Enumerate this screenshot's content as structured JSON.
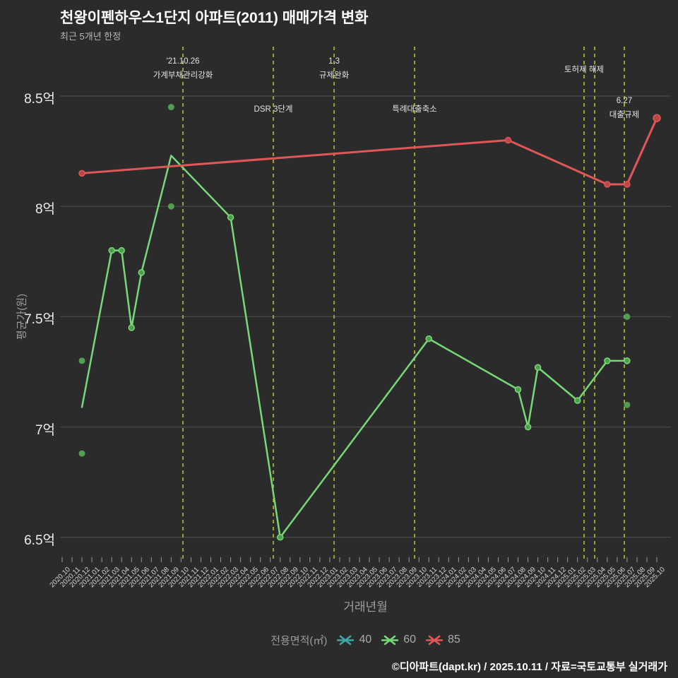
{
  "footer": {
    "credit": "©디아파트(dapt.kr) / 2025.10.11 / 자료=국토교통부 실거래가"
  },
  "colors": {
    "background": "#2b2b2b",
    "grid": "#4f4f4f",
    "x_tick": "#999999",
    "event_line": "#9da32e",
    "teal": "#3fa6a6",
    "green": "#77d877",
    "green_dot": "#4e9e4e",
    "green_scatter": "#55a355",
    "red": "#e15757",
    "red_dot": "#b94747"
  },
  "chart_data": {
    "type": "line",
    "title": "천왕이펜하우스1단지 아파트(2011) 매매가격 변화",
    "subtitle": "최근 5개년 한정",
    "xlabel": "거래년월",
    "ylabel": "평균가(원)",
    "ylim": [
      6.4,
      8.72
    ],
    "grid": true,
    "yticks": [
      {
        "value": 8.5,
        "label": "8.5억"
      },
      {
        "value": 8.0,
        "label": "8억"
      },
      {
        "value": 7.5,
        "label": "7.5억"
      },
      {
        "value": 7.0,
        "label": "7억"
      },
      {
        "value": 6.5,
        "label": "6.5억"
      }
    ],
    "x_categories": [
      "2020.10",
      "2020.11",
      "2020.12",
      "2021.01",
      "2021.02",
      "2021.03",
      "2021.04",
      "2021.05",
      "2021.06",
      "2021.07",
      "2021.08",
      "2021.09",
      "2021.10",
      "2021.11",
      "2021.12",
      "2022.01",
      "2022.02",
      "2022.03",
      "2022.04",
      "2022.05",
      "2022.06",
      "2022.07",
      "2022.08",
      "2022.09",
      "2022.10",
      "2022.11",
      "2022.12",
      "2023.01",
      "2023.02",
      "2023.03",
      "2023.04",
      "2023.05",
      "2023.06",
      "2023.07",
      "2023.08",
      "2023.09",
      "2023.10",
      "2023.11",
      "2023.12",
      "2024.01",
      "2024.02",
      "2024.03",
      "2024.04",
      "2024.05",
      "2024.06",
      "2024.07",
      "2024.08",
      "2024.09",
      "2024.10",
      "2024.11",
      "2024.12",
      "2025.01",
      "2025.02",
      "2025.03",
      "2025.04",
      "2025.05",
      "2025.06",
      "2025.07",
      "2025.08",
      "2025.09",
      "2025.10"
    ],
    "legend": {
      "title": "전용면적(㎡)",
      "items": [
        {
          "label": "40",
          "color": "#3fa6a6"
        },
        {
          "label": "60",
          "color": "#77d877"
        },
        {
          "label": "85",
          "color": "#e15757"
        }
      ]
    },
    "series": [
      {
        "name": "40",
        "color": "#3fa6a6",
        "width": 2.5,
        "points": [],
        "no_marker": []
      },
      {
        "name": "60",
        "color": "#77d877",
        "dot_fill": "#4e9e4e",
        "width": 2.5,
        "points": [
          [
            "2020.12",
            7.09
          ],
          [
            "2021.03",
            7.8
          ],
          [
            "2021.04",
            7.8
          ],
          [
            "2021.05",
            7.45
          ],
          [
            "2021.06",
            7.7
          ],
          [
            "2021.09",
            8.23
          ],
          [
            "2022.03",
            7.95
          ],
          [
            "2022.08",
            6.5
          ],
          [
            "2023.11",
            7.4
          ],
          [
            "2024.08",
            7.17
          ],
          [
            "2024.09",
            7.0
          ],
          [
            "2024.10",
            7.27
          ],
          [
            "2025.02",
            7.12
          ],
          [
            "2025.05",
            7.3
          ],
          [
            "2025.07",
            7.3
          ]
        ],
        "no_marker": [
          "2020.12",
          "2021.09"
        ]
      },
      {
        "name": "85",
        "color": "#e15757",
        "dot_fill": "#b94747",
        "width": 3,
        "points": [
          [
            "2020.12",
            8.15
          ],
          [
            "2024.07",
            8.3
          ],
          [
            "2025.05",
            8.1
          ],
          [
            "2025.07",
            8.1
          ],
          [
            "2025.10",
            8.4,
            5
          ]
        ],
        "no_marker": []
      }
    ],
    "scatter_extra": [
      {
        "series": "60",
        "x": "2020.12",
        "y": 7.3
      },
      {
        "series": "60",
        "x": "2020.12",
        "y": 6.88
      },
      {
        "series": "60",
        "x": "2021.09",
        "y": 8.45
      },
      {
        "series": "60",
        "x": "2021.09",
        "y": 8.0
      },
      {
        "series": "60",
        "x": "2025.07",
        "y": 7.5
      },
      {
        "series": "60",
        "x": "2025.07",
        "y": 7.1
      }
    ],
    "event_lines": [
      {
        "tick": 12.19,
        "label_lines": [
          "'21.10.26",
          "가계부채관리강화"
        ],
        "label_pos": "above"
      },
      {
        "tick": 21.31,
        "label_lines": [
          "DSR 3단계"
        ],
        "label_pos": "inside"
      },
      {
        "tick": 27.44,
        "label_lines": [
          "1.3",
          "규제완화"
        ],
        "label_pos": "above"
      },
      {
        "tick": 35.56,
        "label_lines": [
          "특례대출축소"
        ],
        "label_pos": "inside"
      },
      {
        "tick": 52.66,
        "label_lines": [
          "토허제 해제"
        ],
        "label_pos": "above"
      },
      {
        "tick": 53.73,
        "label_lines": [],
        "label_pos": "none"
      },
      {
        "tick": 56.72,
        "label_lines": [
          "6.27",
          "대출규제"
        ],
        "label_pos": "inside"
      }
    ]
  }
}
